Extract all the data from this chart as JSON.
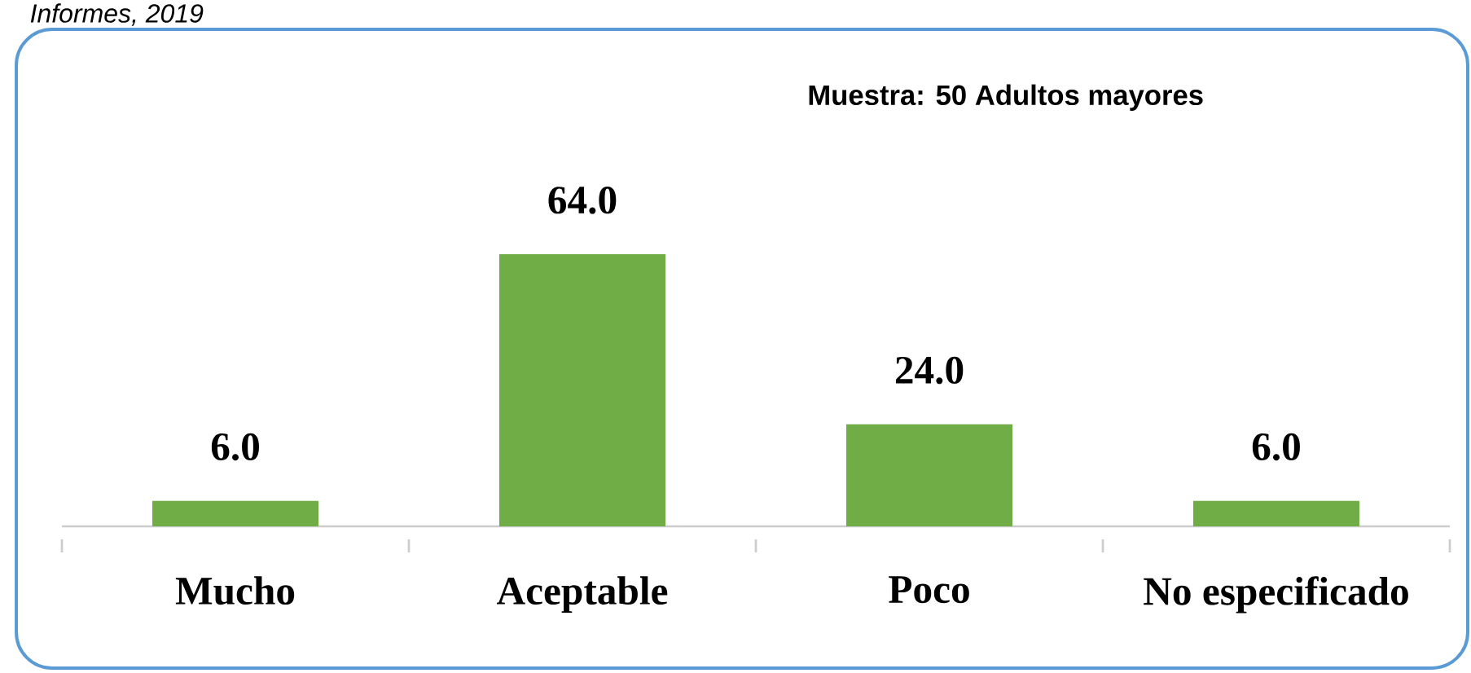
{
  "chart_data": {
    "type": "bar",
    "title": "Muestra: 50 Adultos mayores",
    "categories": [
      "Mucho",
      "Aceptable",
      "Poco",
      "No especificado"
    ],
    "values": [
      6.0,
      64.0,
      24.0,
      6.0
    ],
    "value_labels": [
      "6.0",
      "64.0",
      "24.0",
      "6.0"
    ],
    "color": "#70ad47",
    "annotations": [
      "Informes, 2019"
    ]
  }
}
